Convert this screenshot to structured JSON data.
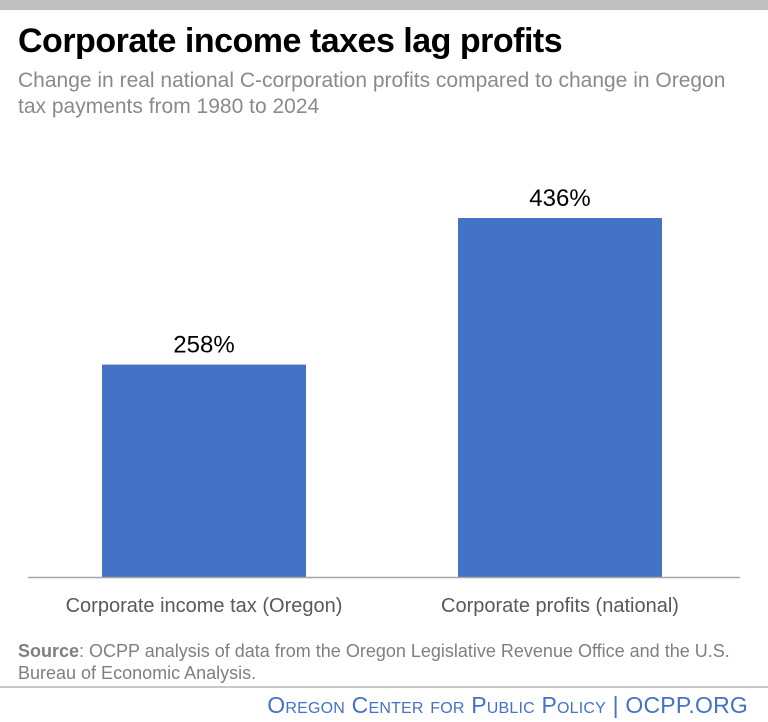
{
  "title": "Corporate income taxes lag profits",
  "subtitle": "Change in real national C-corporation profits compared to change in Oregon tax payments from 1980 to 2024",
  "source_label": "Source",
  "source_text": ": OCPP analysis of data from the Oregon Legislative Revenue Office and the U.S. Bureau of Economic Analysis.",
  "footer": "Oregon Center for Public Policy | OCPP.ORG",
  "colors": {
    "bar": "#4472c4",
    "axis": "#a6a6a6",
    "footer": "#4472c4"
  },
  "chart_data": {
    "type": "bar",
    "title": "Corporate income taxes lag profits",
    "subtitle": "Change in real national C-corporation profits compared to change in Oregon tax payments from 1980 to 2024",
    "categories": [
      "Corporate income tax (Oregon)",
      "Corporate profits (national)"
    ],
    "values": [
      258,
      436
    ],
    "data_labels": [
      "258%",
      "436%"
    ],
    "unit": "%",
    "xlabel": "",
    "ylabel": "",
    "ylim": [
      0,
      500
    ],
    "grid": false,
    "legend": "none"
  }
}
